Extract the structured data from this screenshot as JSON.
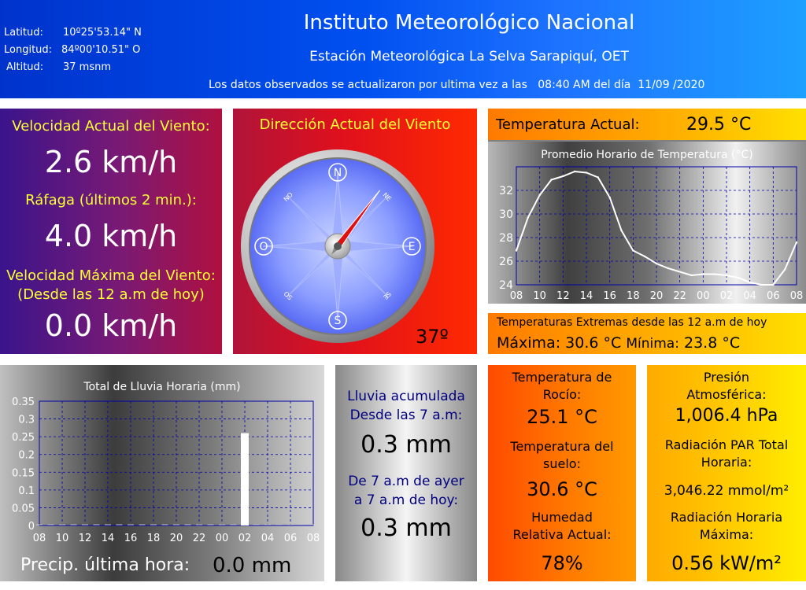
{
  "header": {
    "lat_label": "Latitud:",
    "lat_value": "10º25'53.14\" N",
    "lon_label": "Longitud:",
    "lon_value": "84º00'10.51\" O",
    "alt_label": "Altitud:",
    "alt_value": "37 msnm",
    "title": "Instituto Meteorológico Nacional",
    "subtitle": "Estación Meteorológica La Selva Sarapiquí, OET",
    "update_text": "Los datos observados se actualizaron por ultima vez a las",
    "update_time": "08:40 AM del día",
    "update_date": "11/09 /2020"
  },
  "wind": {
    "current_label": "Velocidad Actual del Viento:",
    "current_value": "2.6 km/h",
    "gust_label": "Ráfaga (últimos 2 min.):",
    "gust_value": "4.0 km/h",
    "max_label_1": "Velocidad Máxima del Viento:",
    "max_label_2": "(Desde las 12 a.m de hoy)",
    "max_value": "0.0 km/h"
  },
  "direction": {
    "label": "Dirección Actual del Viento",
    "degrees": 37,
    "value_text": "37º",
    "cardinals": {
      "n": "N",
      "e": "E",
      "s": "S",
      "w": "O"
    },
    "intercardinals": {
      "ne": "NE",
      "se": "SE",
      "sw": "SO",
      "nw": "NO"
    }
  },
  "temperature": {
    "label": "Temperatura Actual:",
    "value": "29.5 °C"
  },
  "temp_chart_title": "Promedio Horario de Temperatura (°C)",
  "extremes": {
    "label": "Temperaturas Extremas desde las 12 a.m de hoy",
    "max_label": "Máxima:",
    "max_value": "30.6 °C",
    "min_label": "Mínima:",
    "min_value": "23.8 °C"
  },
  "rain_chart_title": "Total de Lluvia Horaria (mm)",
  "precip": {
    "label": "Precip. última hora:",
    "value": "0.0 mm"
  },
  "rain_accum": {
    "label1a": "Lluvia acumulada",
    "label1b": "Desde las 7 a.m:",
    "value1": "0.3 mm",
    "label2a": "De 7 a.m de ayer",
    "label2b": "a 7 a.m de hoy:",
    "value2": "0.3 mm"
  },
  "dew": {
    "dew_label_a": "Temperatura de",
    "dew_label_b": "Rocío:",
    "dew_value": "25.1 °C",
    "soil_label_a": "Temperatura del",
    "soil_label_b": "suelo:",
    "soil_value": "30.6 °C",
    "hum_label_a": "Humedad",
    "hum_label_b": "Relativa Actual:",
    "hum_value": "78%"
  },
  "pressure": {
    "press_label_a": "Presión",
    "press_label_b": "Atmosférica:",
    "press_value": "1,006.4 hPa",
    "par_label_a": "Radiación PAR Total",
    "par_label_b": "Horaria:",
    "par_value": "3,046.22 mmol/m²",
    "rad_label_a": "Radiación Horaria",
    "rad_label_b": "Máxima:",
    "rad_value": "0.56 kW/m²"
  },
  "chart_data": [
    {
      "type": "line",
      "title": "Promedio Horario de Temperatura (°C)",
      "x": [
        "08",
        "09",
        "10",
        "11",
        "12",
        "13",
        "14",
        "15",
        "16",
        "17",
        "18",
        "19",
        "20",
        "21",
        "22",
        "23",
        "00",
        "01",
        "02",
        "03",
        "04",
        "05",
        "06",
        "07",
        "08"
      ],
      "x_ticks": [
        "08",
        "10",
        "12",
        "14",
        "16",
        "18",
        "20",
        "22",
        "00",
        "02",
        "04",
        "06",
        "08"
      ],
      "series": [
        {
          "values": [
            26.9,
            29.7,
            31.6,
            32.9,
            33.2,
            33.6,
            33.5,
            33.1,
            31.4,
            28.6,
            26.9,
            26.4,
            25.8,
            25.4,
            25.1,
            24.8,
            24.9,
            24.9,
            24.8,
            24.6,
            24.2,
            24.0,
            24.0,
            25.3,
            27.6
          ]
        }
      ],
      "ylim": [
        24,
        34
      ],
      "y_ticks": [
        24,
        26,
        28,
        30,
        32
      ],
      "line_color": "#ffffff",
      "grid": true
    },
    {
      "type": "bar",
      "title": "Total de Lluvia Horaria (mm)",
      "x": [
        "08",
        "09",
        "10",
        "11",
        "12",
        "13",
        "14",
        "15",
        "16",
        "17",
        "18",
        "19",
        "20",
        "21",
        "22",
        "23",
        "00",
        "01",
        "02",
        "03",
        "04",
        "05",
        "06",
        "07",
        "08"
      ],
      "x_ticks": [
        "08",
        "10",
        "12",
        "14",
        "16",
        "18",
        "20",
        "22",
        "00",
        "02",
        "04",
        "06",
        "08"
      ],
      "values": [
        0,
        0,
        0,
        0,
        0,
        0,
        0,
        0,
        0,
        0,
        0,
        0,
        0,
        0,
        0,
        0,
        0,
        0,
        0.26,
        0,
        0,
        0,
        0,
        0,
        0
      ],
      "ylim": [
        0,
        0.35
      ],
      "y_ticks": [
        "0",
        "0.05",
        "0.1",
        "0.15",
        "0.2",
        "0.25",
        "0.3",
        "0.35"
      ],
      "bar_color": "#ffffff",
      "grid": true
    }
  ],
  "colors": {
    "header": "#0a5cf5",
    "wind_panel": "#6a1a8a",
    "direction_panel": "#ff1a00",
    "temp_header": "#ff8c00",
    "chart_grid": "#0000aa",
    "label_yellow": "#ffff33",
    "accum_text": "#000080"
  }
}
